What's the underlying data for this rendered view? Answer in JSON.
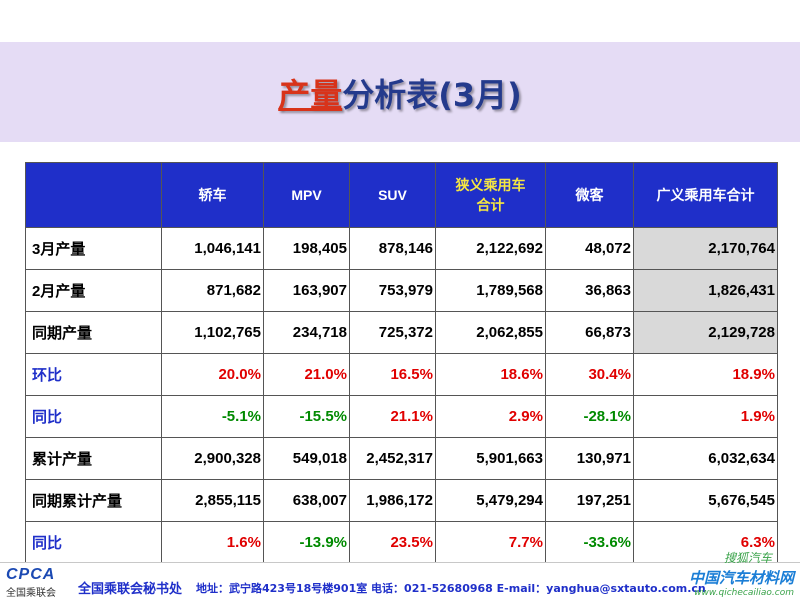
{
  "title": {
    "highlight": "产量",
    "rest": "分析表(3月)"
  },
  "table": {
    "headers": [
      "",
      "轿车",
      "MPV",
      "SUV",
      "狭义乘用车\n合计",
      "微客",
      "广义乘用车合计"
    ],
    "rows": [
      {
        "label": "3月产量",
        "type": "value",
        "cells": [
          "1,046,141",
          "198,405",
          "878,146",
          "2,122,692",
          "48,072",
          "2,170,764"
        ]
      },
      {
        "label": "2月产量",
        "type": "value",
        "cells": [
          "871,682",
          "163,907",
          "753,979",
          "1,789,568",
          "36,863",
          "1,826,431"
        ]
      },
      {
        "label": "同期产量",
        "type": "value",
        "cells": [
          "1,102,765",
          "234,718",
          "725,372",
          "2,062,855",
          "66,873",
          "2,129,728"
        ]
      },
      {
        "label": "环比",
        "type": "ratio",
        "cells": [
          "20.0%",
          "21.0%",
          "16.5%",
          "18.6%",
          "30.4%",
          "18.9%"
        ]
      },
      {
        "label": "同比",
        "type": "ratio",
        "cells": [
          "-5.1%",
          "-15.5%",
          "21.1%",
          "2.9%",
          "-28.1%",
          "1.9%"
        ]
      },
      {
        "label": "累计产量",
        "type": "value",
        "cells": [
          "2,900,328",
          "549,018",
          "2,452,317",
          "5,901,663",
          "130,971",
          "6,032,634"
        ]
      },
      {
        "label": "同期累计产量",
        "type": "value",
        "cells": [
          "2,855,115",
          "638,007",
          "1,986,172",
          "5,479,294",
          "197,251",
          "5,676,545"
        ]
      },
      {
        "label": "同比",
        "type": "ratio",
        "cells": [
          "1.6%",
          "-13.9%",
          "23.5%",
          "7.7%",
          "-33.6%",
          "6.3%"
        ]
      }
    ]
  },
  "footer": {
    "logo_text": "CPCA",
    "logo_sub": "全国乘联会",
    "org": "全国乘联会秘书处",
    "address": "地址：武宁路423号18号楼901室    电话：021-52680968   E-mail：yanghua@sxtauto.com.cn",
    "watermark_cn": "中国汽车材料网",
    "watermark_url": "www.qichecailiao.com",
    "watermark_sohu": "搜狐汽车"
  },
  "colors": {
    "header_bg": "#1f2fc9",
    "positive": "#e00000",
    "negative": "#008a00",
    "ratio_bg": "#ffffcc",
    "band": "#e5dcf5"
  }
}
